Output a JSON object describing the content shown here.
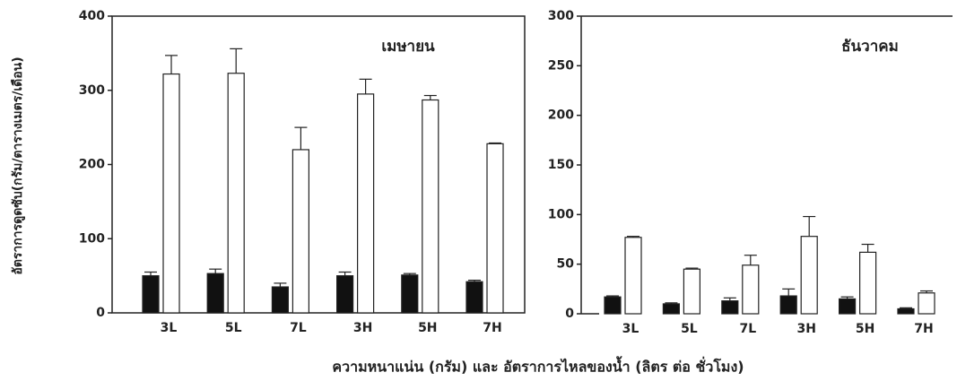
{
  "ylabel": "อัตราการดูดซับ(กรัม/ตารางเมตร/เดือน)",
  "xlabel": "ความหนาแน่น (กรัม) และ อัตราการไหลของน้ำ (ลิตร ต่อ ชั่วโมง)",
  "chart_data": [
    {
      "type": "bar",
      "title": "เมษายน",
      "categories": [
        "3L",
        "5L",
        "7L",
        "3H",
        "5H",
        "7H"
      ],
      "series": [
        {
          "color": "#111111",
          "values": [
            50,
            53,
            35,
            50,
            51,
            42
          ],
          "errors": [
            5,
            6,
            5,
            5,
            2,
            2
          ]
        },
        {
          "color": "#ffffff",
          "values": [
            322,
            323,
            220,
            295,
            287,
            228
          ],
          "errors": [
            25,
            33,
            30,
            20,
            6,
            1
          ]
        }
      ],
      "ylim": [
        0,
        400
      ],
      "yticks": [
        0,
        100,
        200,
        300,
        400
      ]
    },
    {
      "type": "bar",
      "title": "ธันวาคม",
      "categories": [
        "3L",
        "5L",
        "7L",
        "3H",
        "5H",
        "7H"
      ],
      "series": [
        {
          "color": "#111111",
          "values": [
            17,
            10,
            13,
            18,
            15,
            5
          ],
          "errors": [
            1,
            1,
            3,
            7,
            2,
            1
          ]
        },
        {
          "color": "#ffffff",
          "values": [
            77,
            45,
            49,
            78,
            62,
            21
          ],
          "errors": [
            1,
            1,
            10,
            20,
            8,
            2
          ]
        }
      ],
      "ylim": [
        0,
        300
      ],
      "yticks": [
        0,
        50,
        100,
        150,
        200,
        250,
        300
      ]
    }
  ]
}
